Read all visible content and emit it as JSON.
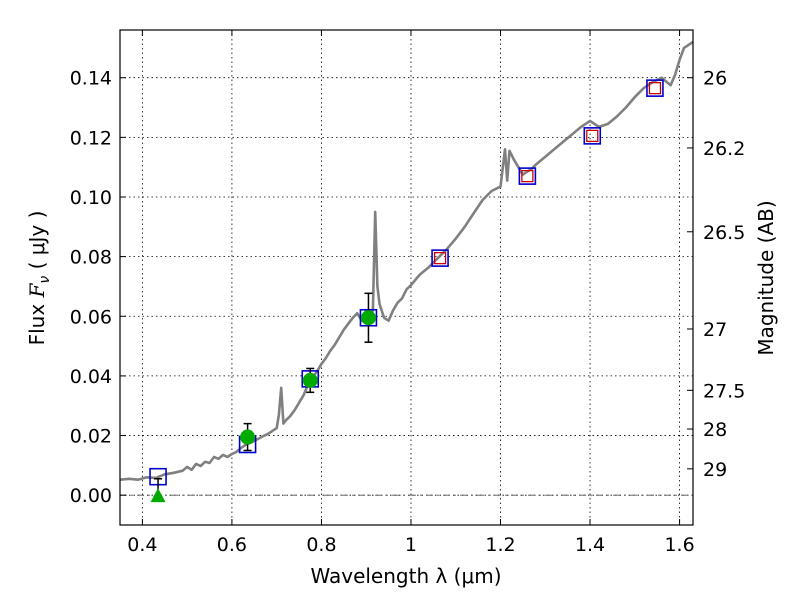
{
  "chart_data": {
    "type": "scatter",
    "xlabel": "Wavelength  λ (μm)",
    "ylabel_prefix": "Flux  ",
    "ylabel_symbol": "F",
    "ylabel_sub": "ν",
    "ylabel_suffix": "  ( μJy )",
    "y2label": "Magnitude (AB)",
    "xlim": [
      0.35,
      1.63
    ],
    "ylim": [
      -0.01,
      0.156
    ],
    "grid": true,
    "x_ticks": [
      {
        "value": 0.4,
        "label": "0.4"
      },
      {
        "value": 0.6,
        "label": "0.6"
      },
      {
        "value": 0.8,
        "label": "0.8"
      },
      {
        "value": 1.0,
        "label": "1"
      },
      {
        "value": 1.2,
        "label": "1.2"
      },
      {
        "value": 1.4,
        "label": "1.4"
      },
      {
        "value": 1.6,
        "label": "1.6"
      }
    ],
    "y_ticks": [
      {
        "value": 0.0,
        "label": "0.00"
      },
      {
        "value": 0.02,
        "label": "0.02"
      },
      {
        "value": 0.04,
        "label": "0.04"
      },
      {
        "value": 0.06,
        "label": "0.06"
      },
      {
        "value": 0.08,
        "label": "0.08"
      },
      {
        "value": 0.1,
        "label": "0.10"
      },
      {
        "value": 0.12,
        "label": "0.12"
      },
      {
        "value": 0.14,
        "label": "0.14"
      }
    ],
    "mag_ticks": [
      {
        "value": 26,
        "label": "26"
      },
      {
        "value": 26.2,
        "label": "26.2"
      },
      {
        "value": 26.5,
        "label": "26.5"
      },
      {
        "value": 27,
        "label": "27"
      },
      {
        "value": 27.5,
        "label": "27.5"
      },
      {
        "value": 28,
        "label": "28"
      },
      {
        "value": 29,
        "label": "29"
      }
    ],
    "model_spectrum": {
      "color": "#808080",
      "points": [
        [
          0.35,
          0.0052
        ],
        [
          0.37,
          0.0055
        ],
        [
          0.39,
          0.0052
        ],
        [
          0.41,
          0.006
        ],
        [
          0.43,
          0.0058
        ],
        [
          0.45,
          0.007
        ],
        [
          0.47,
          0.0075
        ],
        [
          0.49,
          0.0082
        ],
        [
          0.5,
          0.0095
        ],
        [
          0.51,
          0.0085
        ],
        [
          0.52,
          0.0105
        ],
        [
          0.53,
          0.0098
        ],
        [
          0.54,
          0.0112
        ],
        [
          0.55,
          0.0108
        ],
        [
          0.56,
          0.0128
        ],
        [
          0.57,
          0.0122
        ],
        [
          0.58,
          0.0135
        ],
        [
          0.59,
          0.0128
        ],
        [
          0.6,
          0.0138
        ],
        [
          0.61,
          0.0145
        ],
        [
          0.62,
          0.0158
        ],
        [
          0.63,
          0.0168
        ],
        [
          0.64,
          0.0175
        ],
        [
          0.65,
          0.0182
        ],
        [
          0.66,
          0.019
        ],
        [
          0.67,
          0.0198
        ],
        [
          0.68,
          0.0205
        ],
        [
          0.69,
          0.0215
        ],
        [
          0.7,
          0.0225
        ],
        [
          0.705,
          0.027
        ],
        [
          0.71,
          0.036
        ],
        [
          0.715,
          0.024
        ],
        [
          0.72,
          0.025
        ],
        [
          0.73,
          0.0265
        ],
        [
          0.74,
          0.0285
        ],
        [
          0.75,
          0.031
        ],
        [
          0.76,
          0.0335
        ],
        [
          0.77,
          0.037
        ],
        [
          0.78,
          0.0395
        ],
        [
          0.79,
          0.0415
        ],
        [
          0.8,
          0.044
        ],
        [
          0.81,
          0.046
        ],
        [
          0.82,
          0.0485
        ],
        [
          0.83,
          0.0505
        ],
        [
          0.84,
          0.053
        ],
        [
          0.85,
          0.0555
        ],
        [
          0.86,
          0.0575
        ],
        [
          0.87,
          0.0595
        ],
        [
          0.88,
          0.061
        ],
        [
          0.89,
          0.0585
        ],
        [
          0.9,
          0.062
        ],
        [
          0.905,
          0.059
        ],
        [
          0.91,
          0.0605
        ],
        [
          0.915,
          0.062
        ],
        [
          0.92,
          0.095
        ],
        [
          0.925,
          0.07
        ],
        [
          0.93,
          0.064
        ],
        [
          0.94,
          0.0595
        ],
        [
          0.95,
          0.0585
        ],
        [
          0.96,
          0.062
        ],
        [
          0.97,
          0.0645
        ],
        [
          0.98,
          0.066
        ],
        [
          0.99,
          0.069
        ],
        [
          1.0,
          0.0705
        ],
        [
          1.02,
          0.074
        ],
        [
          1.04,
          0.0765
        ],
        [
          1.06,
          0.0795
        ],
        [
          1.08,
          0.0825
        ],
        [
          1.1,
          0.086
        ],
        [
          1.12,
          0.09
        ],
        [
          1.14,
          0.0945
        ],
        [
          1.16,
          0.099
        ],
        [
          1.18,
          0.102
        ],
        [
          1.2,
          0.1035
        ],
        [
          1.21,
          0.116
        ],
        [
          1.215,
          0.1055
        ],
        [
          1.22,
          0.1155
        ],
        [
          1.23,
          0.1125
        ],
        [
          1.24,
          0.11
        ],
        [
          1.25,
          0.1075
        ],
        [
          1.26,
          0.1085
        ],
        [
          1.27,
          0.1095
        ],
        [
          1.28,
          0.111
        ],
        [
          1.3,
          0.1135
        ],
        [
          1.32,
          0.116
        ],
        [
          1.34,
          0.1185
        ],
        [
          1.36,
          0.121
        ],
        [
          1.38,
          0.1235
        ],
        [
          1.4,
          0.1255
        ],
        [
          1.42,
          0.1235
        ],
        [
          1.44,
          0.1245
        ],
        [
          1.46,
          0.127
        ],
        [
          1.48,
          0.13
        ],
        [
          1.5,
          0.1335
        ],
        [
          1.52,
          0.1365
        ],
        [
          1.54,
          0.1385
        ],
        [
          1.56,
          0.14
        ],
        [
          1.58,
          0.1375
        ],
        [
          1.59,
          0.141
        ],
        [
          1.6,
          0.146
        ],
        [
          1.61,
          0.15
        ],
        [
          1.63,
          0.152
        ]
      ]
    },
    "model_photometry": {
      "marker": "open-square",
      "color": "#0000cc",
      "x": [
        0.435,
        0.635,
        0.775,
        0.905,
        1.065,
        1.26,
        1.405,
        1.545
      ],
      "y": [
        0.0062,
        0.017,
        0.039,
        0.0595,
        0.0795,
        0.107,
        0.1205,
        0.1365
      ]
    },
    "nir_photometry": {
      "marker": "open-square",
      "color": "#cc0000",
      "x": [
        1.065,
        1.26,
        1.405,
        1.545
      ],
      "y": [
        0.0795,
        0.107,
        0.1205,
        0.1365
      ]
    },
    "observed_detections": {
      "marker": "filled-circle",
      "color": "#00aa00",
      "x": [
        0.635,
        0.775,
        0.905
      ],
      "y": [
        0.0195,
        0.0385,
        0.0595
      ],
      "err": [
        0.0045,
        0.004,
        0.0082
      ]
    },
    "upper_limit": {
      "marker": "filled-triangle",
      "color": "#00aa00",
      "x": 0.435,
      "y": 0.0,
      "err_high": 0.0055
    }
  }
}
